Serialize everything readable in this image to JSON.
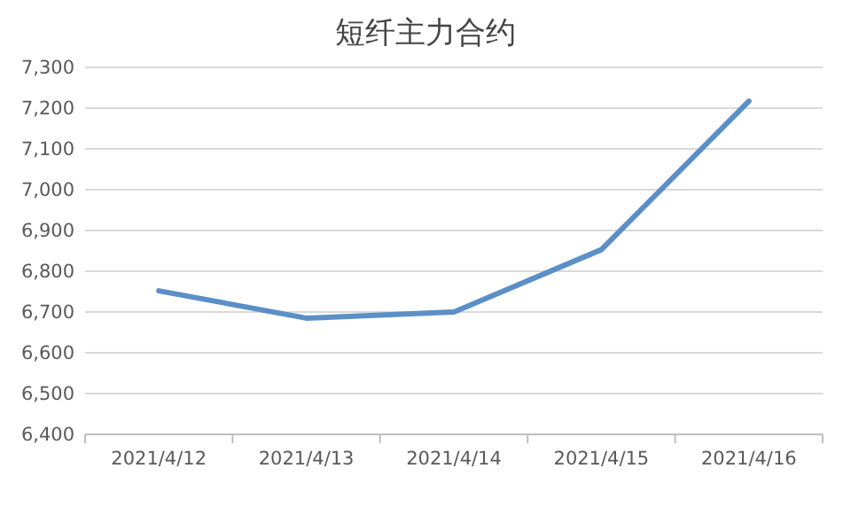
{
  "chart_data": {
    "type": "line",
    "title": "短纤主力合约",
    "categories": [
      "2021/4/12",
      "2021/4/13",
      "2021/4/14",
      "2021/4/15",
      "2021/4/16"
    ],
    "series": [
      {
        "color": "#5b8fc7",
        "values": [
          6752,
          6685,
          6700,
          6853,
          7217
        ]
      }
    ],
    "ylim": [
      6400,
      7300
    ],
    "yticks": [
      {
        "value": 6400,
        "label": "6,400"
      },
      {
        "value": 6500,
        "label": "6,500"
      },
      {
        "value": 6600,
        "label": "6,600"
      },
      {
        "value": 6700,
        "label": "6,700"
      },
      {
        "value": 6800,
        "label": "6,800"
      },
      {
        "value": 6900,
        "label": "6,900"
      },
      {
        "value": 7000,
        "label": "7,000"
      },
      {
        "value": 7100,
        "label": "7,100"
      },
      {
        "value": 7200,
        "label": "7,200"
      },
      {
        "value": 7300,
        "label": "7,300"
      }
    ],
    "grid": "y",
    "marker": "none",
    "line_style": "solid"
  }
}
